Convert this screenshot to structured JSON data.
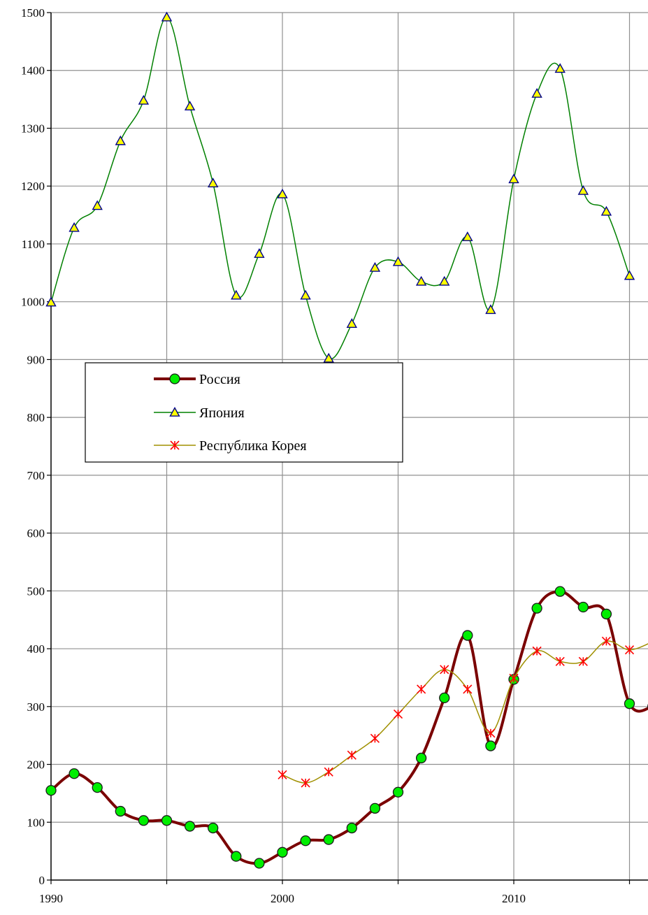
{
  "chart_data": {
    "type": "line",
    "title": "",
    "xlabel": "",
    "ylabel": "",
    "xlim": [
      1990,
      2015.8
    ],
    "ylim": [
      0,
      1500
    ],
    "x_ticks": [
      1990,
      2000,
      2010
    ],
    "x_ticks_labels": [
      "1990",
      "2000",
      "2010"
    ],
    "y_ticks": [
      0,
      100,
      200,
      300,
      400,
      500,
      600,
      700,
      800,
      900,
      1000,
      1100,
      1200,
      1300,
      1400,
      1500
    ],
    "y_ticks_labels": [
      "0",
      "100",
      "200",
      "300",
      "400",
      "500",
      "600",
      "700",
      "800",
      "900",
      "1000",
      "1100",
      "1200",
      "1300",
      "1400",
      "1500"
    ],
    "grid": true,
    "legend_position": "upper-left",
    "series": [
      {
        "name": "Россия",
        "color": "#7a0000",
        "marker_color": "#00ee00",
        "marker": "circle",
        "x": [
          1990,
          1991,
          1992,
          1993,
          1994,
          1995,
          1996,
          1997,
          1998,
          1999,
          2000,
          2001,
          2002,
          2003,
          2004,
          2005,
          2006,
          2007,
          2008,
          2009,
          2010,
          2011,
          2012,
          2013,
          2014,
          2015,
          2016
        ],
        "values": [
          155,
          184,
          160,
          119,
          103,
          103,
          93,
          90,
          41,
          29,
          48,
          68,
          70,
          90,
          124,
          152,
          211,
          315,
          423,
          232,
          347,
          470,
          499,
          472,
          460,
          305,
          300
        ]
      },
      {
        "name": "Япония",
        "color": "#008000",
        "marker_color": "#ffff00",
        "marker": "triangle",
        "x": [
          1990,
          1991,
          1992,
          1993,
          1994,
          1995,
          1996,
          1997,
          1998,
          1999,
          2000,
          2001,
          2002,
          2003,
          2004,
          2005,
          2006,
          2007,
          2008,
          2009,
          2010,
          2011,
          2012,
          2013,
          2014,
          2015
        ],
        "values": [
          999,
          1128,
          1166,
          1278,
          1348,
          1492,
          1338,
          1205,
          1011,
          1083,
          1186,
          1011,
          902,
          962,
          1059,
          1069,
          1035,
          1035,
          1112,
          986,
          1212,
          1360,
          1403,
          1192,
          1156,
          1045
        ]
      },
      {
        "name": "Республика Корея",
        "color": "#a09000",
        "marker_color": "#ff0000",
        "marker": "star",
        "x": [
          2000,
          2001,
          2002,
          2003,
          2004,
          2005,
          2006,
          2007,
          2008,
          2009,
          2010,
          2011,
          2012,
          2013,
          2014,
          2015,
          2016
        ],
        "values": [
          182,
          168,
          187,
          216,
          245,
          287,
          330,
          364,
          330,
          254,
          349,
          396,
          378,
          378,
          413,
          398,
          412
        ]
      }
    ]
  }
}
